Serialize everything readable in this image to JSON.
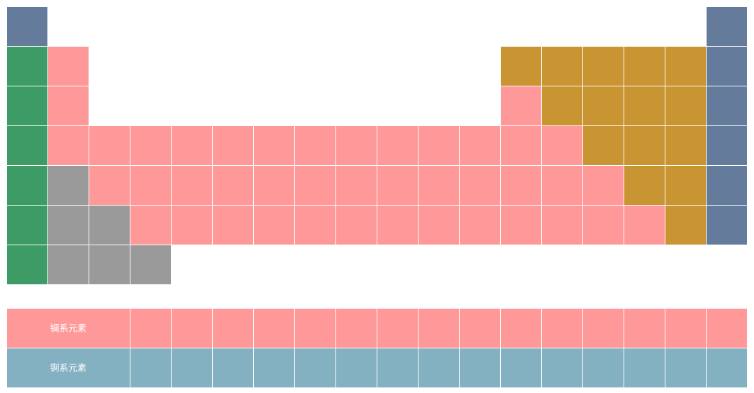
{
  "lanthanides": {
    "label": "镧系元素"
  },
  "actinides": {
    "label": "锕系元素"
  }
}
